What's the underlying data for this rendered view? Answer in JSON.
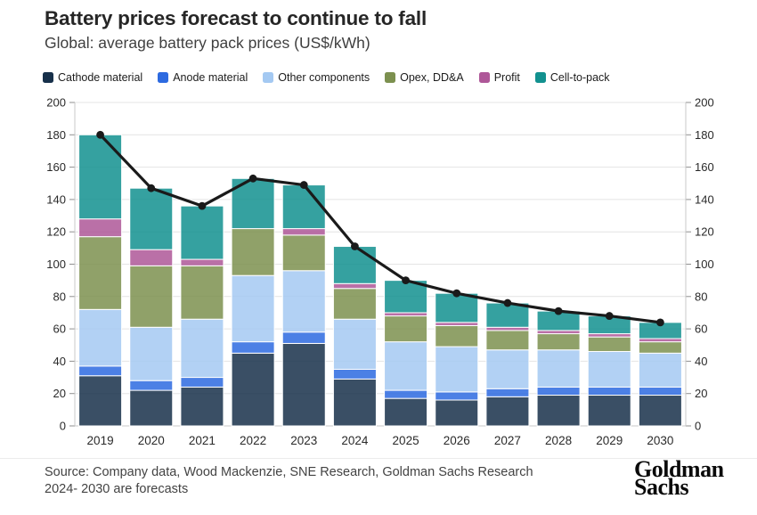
{
  "header": {
    "title": "Battery prices forecast to continue to fall",
    "subtitle": "Global: average battery pack prices (US$/kWh)"
  },
  "footer": {
    "source_line1": "Source: Company data, Wood Mackenzie, SNE Research, Goldman Sachs Research",
    "source_line2": "2024- 2030 are forecasts",
    "logo_line1": "Goldman",
    "logo_line2": "Sachs"
  },
  "chart_data": {
    "type": "bar",
    "subtype": "stacked-bars-with-total-line",
    "title": "Battery prices forecast to continue to fall",
    "subtitle": "Global: average battery pack prices (US$/kWh)",
    "categories": [
      "2019",
      "2020",
      "2021",
      "2022",
      "2023",
      "2024",
      "2025",
      "2026",
      "2027",
      "2028",
      "2029",
      "2030"
    ],
    "series": [
      {
        "name": "Cathode material",
        "color": "#17304a",
        "values": [
          31,
          22,
          24,
          45,
          51,
          29,
          17,
          16,
          18,
          19,
          19,
          19
        ]
      },
      {
        "name": "Anode material",
        "color": "#2d6ae0",
        "values": [
          6,
          6,
          6,
          7,
          7,
          6,
          5,
          5,
          5,
          5,
          5,
          5
        ]
      },
      {
        "name": "Other components",
        "color": "#a4c9f2",
        "values": [
          35,
          33,
          36,
          41,
          38,
          31,
          30,
          28,
          24,
          23,
          22,
          21
        ]
      },
      {
        "name": "Opex, DD&A",
        "color": "#7c904f",
        "values": [
          45,
          38,
          33,
          29,
          22,
          19,
          16,
          13,
          12,
          10,
          9,
          7
        ]
      },
      {
        "name": "Profit",
        "color": "#ae5798",
        "values": [
          11,
          10,
          4,
          0,
          4,
          3,
          2,
          2,
          2,
          2,
          2,
          2
        ]
      },
      {
        "name": "Cell-to-pack",
        "color": "#12918f",
        "values": [
          52,
          38,
          33,
          31,
          27,
          23,
          20,
          18,
          15,
          12,
          11,
          10
        ]
      }
    ],
    "line": {
      "name": "total",
      "color": "#1a1a1a",
      "values": [
        180,
        147,
        136,
        153,
        149,
        111,
        90,
        82,
        76,
        71,
        68,
        64
      ]
    },
    "xlabel": "",
    "ylabel": "",
    "ylim": [
      0,
      200
    ],
    "yticks": [
      0,
      20,
      40,
      60,
      80,
      100,
      120,
      140,
      160,
      180,
      200
    ],
    "grid": true,
    "legend_position": "top",
    "dual_y_axis": true
  }
}
